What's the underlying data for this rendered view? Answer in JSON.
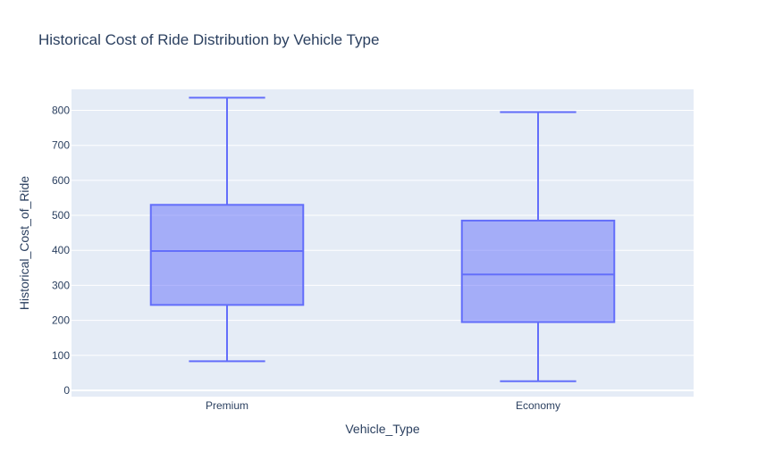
{
  "chart_data": {
    "type": "box",
    "title": "Historical Cost of Ride Distribution by Vehicle Type",
    "xlabel": "Vehicle_Type",
    "ylabel": "Historical_Cost_of_Ride",
    "categories": [
      "Premium",
      "Economy"
    ],
    "boxes": [
      {
        "category": "Premium",
        "min": 83,
        "q1": 244,
        "median": 398,
        "q3": 530,
        "max": 836
      },
      {
        "category": "Economy",
        "min": 26,
        "q1": 195,
        "median": 331,
        "q3": 485,
        "max": 795
      }
    ],
    "ylim": [
      -18,
      860
    ],
    "yticks": [
      0,
      100,
      200,
      300,
      400,
      500,
      600,
      700,
      800
    ],
    "grid": true,
    "colors": {
      "box_line": "#636efa",
      "box_fill": "rgba(99,110,250,0.5)",
      "plot_bg": "#e5ecf6",
      "grid": "#ffffff",
      "text": "#2a3f5f"
    }
  }
}
